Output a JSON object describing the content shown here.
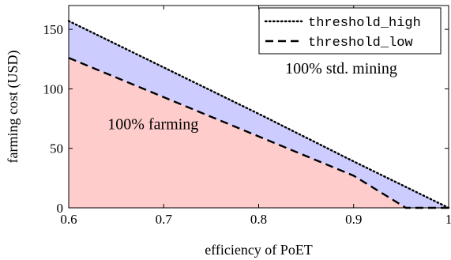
{
  "chart_data": {
    "type": "area",
    "xlabel": "efficiency of PoET",
    "ylabel": "farming cost (USD)",
    "xlim": [
      0.6,
      1.0
    ],
    "ylim": [
      0,
      170
    ],
    "xticks": [
      "0.6",
      "0.7",
      "0.8",
      "0.9",
      "1"
    ],
    "yticks": [
      "0",
      "50",
      "100",
      "150"
    ],
    "grid": false,
    "legend_position": "top-right",
    "series": [
      {
        "name": "threshold_high",
        "style": "dotted",
        "color": "#000000",
        "x": [
          0.6,
          0.7,
          0.8,
          0.9,
          1.0
        ],
        "y": [
          157,
          118,
          79,
          39,
          0
        ]
      },
      {
        "name": "threshold_low",
        "style": "dashed",
        "color": "#000000",
        "x": [
          0.6,
          0.7,
          0.8,
          0.9,
          0.955,
          0.99,
          1.0
        ],
        "y": [
          126,
          93,
          60,
          27,
          0,
          0,
          0
        ]
      }
    ],
    "regions": [
      {
        "label": "100% farming",
        "color": "#ffcccc",
        "below": "threshold_low"
      },
      {
        "label": "",
        "color": "#ccccff",
        "between": [
          "threshold_low",
          "threshold_high"
        ]
      },
      {
        "label": "100% std. mining",
        "color": "#ffffff",
        "above": "threshold_high"
      }
    ]
  }
}
